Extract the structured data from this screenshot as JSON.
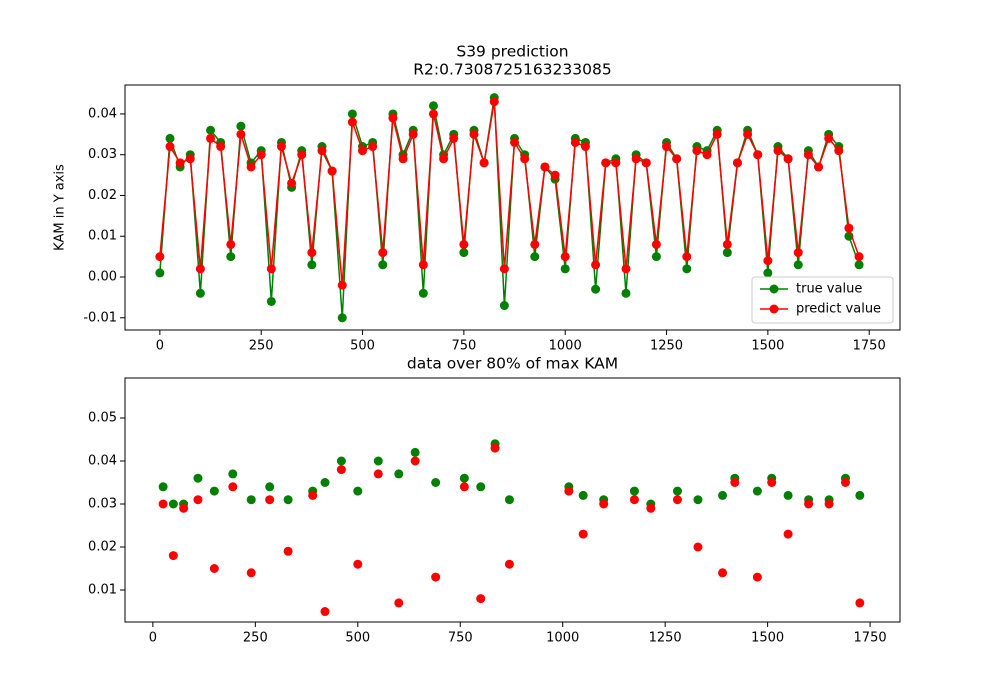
{
  "chart_data": [
    {
      "type": "line",
      "title": "S39 prediction",
      "subtitle": "R2:0.7308725163233085",
      "y_label": "KAM in Y axis",
      "x": [
        0,
        25,
        50,
        75,
        100,
        125,
        150,
        175,
        200,
        225,
        250,
        275,
        300,
        325,
        350,
        375,
        400,
        425,
        450,
        475,
        500,
        525,
        550,
        575,
        600,
        625,
        650,
        675,
        700,
        725,
        750,
        775,
        800,
        825,
        850,
        875,
        900,
        925,
        950,
        975,
        1000,
        1025,
        1050,
        1075,
        1100,
        1125,
        1150,
        1175,
        1200,
        1225,
        1250,
        1275,
        1300,
        1325,
        1350,
        1375,
        1400,
        1425,
        1450,
        1475,
        1500,
        1525,
        1550,
        1575,
        1600,
        1625,
        1650,
        1675,
        1700,
        1725
      ],
      "series": [
        {
          "name": "true value",
          "color": "green",
          "values": [
            0.001,
            0.034,
            0.027,
            0.03,
            -0.004,
            0.036,
            0.033,
            0.005,
            0.037,
            0.028,
            0.031,
            -0.006,
            0.033,
            0.022,
            0.031,
            0.003,
            0.032,
            0.026,
            -0.01,
            0.04,
            0.032,
            0.033,
            0.003,
            0.04,
            0.03,
            0.036,
            -0.004,
            0.042,
            0.03,
            0.035,
            0.006,
            0.036,
            0.028,
            0.044,
            -0.007,
            0.034,
            0.03,
            0.005,
            0.027,
            0.024,
            0.002,
            0.034,
            0.033,
            -0.003,
            0.028,
            0.029,
            -0.004,
            0.03,
            0.028,
            0.005,
            0.033,
            0.029,
            0.002,
            0.032,
            0.031,
            0.036,
            0.006,
            0.028,
            0.036,
            0.03,
            0.001,
            0.032,
            0.029,
            0.003,
            0.031,
            0.027,
            0.035,
            0.032,
            0.01,
            0.003
          ]
        },
        {
          "name": "predict value",
          "color": "red",
          "values": [
            0.005,
            0.032,
            0.028,
            0.029,
            0.002,
            0.034,
            0.032,
            0.008,
            0.035,
            0.027,
            0.03,
            0.002,
            0.032,
            0.023,
            0.03,
            0.006,
            0.031,
            0.026,
            -0.002,
            0.038,
            0.031,
            0.032,
            0.006,
            0.039,
            0.029,
            0.035,
            0.003,
            0.04,
            0.029,
            0.034,
            0.008,
            0.035,
            0.028,
            0.043,
            0.002,
            0.033,
            0.029,
            0.008,
            0.027,
            0.025,
            0.005,
            0.033,
            0.032,
            0.003,
            0.028,
            0.028,
            0.002,
            0.029,
            0.028,
            0.008,
            0.032,
            0.029,
            0.005,
            0.031,
            0.03,
            0.035,
            0.008,
            0.028,
            0.035,
            0.03,
            0.004,
            0.031,
            0.029,
            0.006,
            0.03,
            0.027,
            0.034,
            0.031,
            0.012,
            0.005
          ]
        }
      ],
      "xlim": [
        -86,
        1826
      ],
      "xticks": [
        0,
        250,
        500,
        750,
        1000,
        1250,
        1500,
        1750
      ],
      "ylim": [
        -0.013,
        0.0471
      ],
      "yticks": [
        -0.01,
        {
          "value": 0,
          "label": "0.00"
        },
        0.01,
        0.02,
        0.03,
        0.04
      ],
      "legend": "lower right"
    },
    {
      "type": "scatter",
      "title": "data over 80% of max KAM",
      "x": [
        25,
        50,
        75,
        110,
        150,
        195,
        240,
        285,
        330,
        390,
        420,
        460,
        500,
        550,
        600,
        640,
        690,
        760,
        800,
        835,
        870,
        1015,
        1050,
        1100,
        1175,
        1215,
        1280,
        1330,
        1390,
        1420,
        1475,
        1510,
        1550,
        1600,
        1650,
        1690,
        1725
      ],
      "series": [
        {
          "name": "true value",
          "color": "green",
          "values": [
            0.034,
            0.03,
            0.03,
            0.036,
            0.033,
            0.037,
            0.031,
            0.034,
            0.031,
            0.033,
            0.035,
            0.04,
            0.033,
            0.04,
            0.037,
            0.042,
            0.035,
            0.036,
            0.034,
            0.044,
            0.031,
            0.034,
            0.032,
            0.031,
            0.033,
            0.03,
            0.033,
            0.031,
            0.032,
            0.036,
            0.033,
            0.036,
            0.032,
            0.031,
            0.031,
            0.036,
            0.032
          ]
        },
        {
          "name": "predict value",
          "color": "red",
          "values": [
            0.03,
            0.018,
            0.029,
            0.031,
            0.015,
            0.034,
            0.014,
            0.031,
            0.019,
            0.032,
            0.005,
            0.038,
            0.016,
            0.037,
            0.007,
            0.04,
            0.013,
            0.034,
            0.008,
            0.043,
            0.016,
            0.033,
            0.023,
            0.03,
            0.031,
            0.029,
            0.031,
            0.02,
            0.014,
            0.035,
            0.013,
            0.035,
            0.023,
            0.03,
            0.03,
            0.035,
            0.007
          ]
        }
      ],
      "xlim": [
        -68,
        1823
      ],
      "xticks": [
        0,
        250,
        500,
        750,
        1000,
        1250,
        1500,
        1750
      ],
      "ylim": [
        0.00256,
        0.0593
      ],
      "yticks": [
        0.01,
        0.02,
        0.03,
        0.04,
        0.05
      ]
    }
  ]
}
